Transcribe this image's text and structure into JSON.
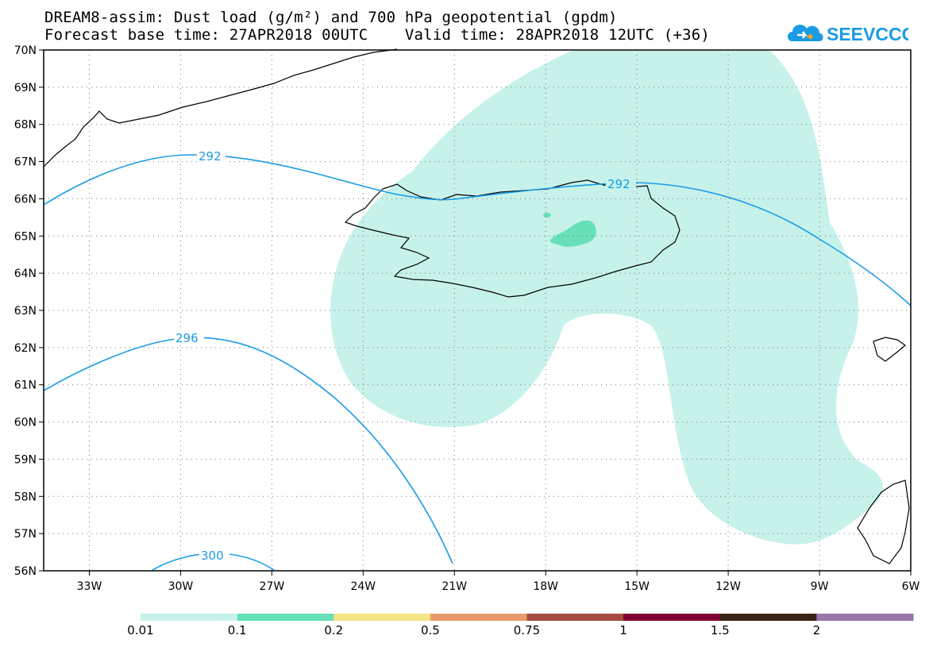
{
  "title": {
    "line1": "DREAM8-assim: Dust load (g/m²) and 700 hPa geopotential (gpdm)",
    "line2": "Forecast base time: 27APR2018 00UTC    Valid time: 28APR2018 12UTC (+36)"
  },
  "logo": {
    "text": "SEEVCCC",
    "icon": "cloud-icon"
  },
  "map": {
    "lon_range": [
      -34.5,
      -6
    ],
    "lat_range": [
      56,
      70
    ],
    "lon_ticks": [
      "33W",
      "30W",
      "27W",
      "24W",
      "21W",
      "18W",
      "15W",
      "12W",
      "9W",
      "6W"
    ],
    "lat_ticks": [
      "56N",
      "57N",
      "58N",
      "59N",
      "60N",
      "61N",
      "62N",
      "63N",
      "64N",
      "65N",
      "66N",
      "67N",
      "68N",
      "69N",
      "70N"
    ],
    "grid": "dotted",
    "dust_fill_color": "#c6f2ea",
    "dust_core_color": "#66e0b8",
    "contour_color": "#1a9be6",
    "contour_labels": [
      "292",
      "292",
      "296",
      "300"
    ]
  },
  "colorbar": {
    "labels": [
      "0.01",
      "0.1",
      "0.2",
      "0.5",
      "0.75",
      "1",
      "1.5",
      "2"
    ],
    "colors": [
      "#c6f2ea",
      "#66e0b8",
      "#f5e584",
      "#e89a6a",
      "#a64a40",
      "#7f0032",
      "#3a2416",
      "#9977aa"
    ]
  }
}
